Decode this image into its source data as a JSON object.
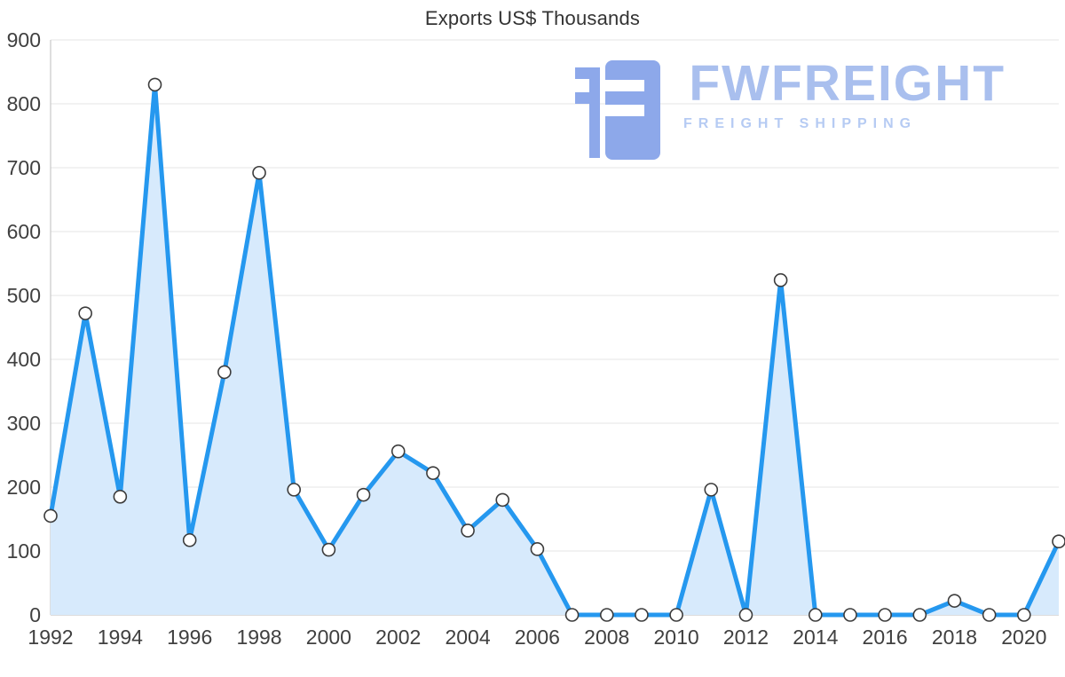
{
  "logo": {
    "name": "FWFREIGHT",
    "tagline": "FREIGHT SHIPPING"
  },
  "chart_data": {
    "type": "area",
    "title": "Exports US$ Thousands",
    "xlabel": "",
    "ylabel": "",
    "x": [
      1992,
      1993,
      1994,
      1995,
      1996,
      1997,
      1998,
      1999,
      2000,
      2001,
      2002,
      2003,
      2004,
      2005,
      2006,
      2007,
      2008,
      2009,
      2010,
      2011,
      2012,
      2013,
      2014,
      2015,
      2016,
      2017,
      2018,
      2019,
      2020,
      2021
    ],
    "values": [
      155,
      472,
      185,
      830,
      117,
      380,
      692,
      196,
      102,
      188,
      256,
      222,
      132,
      180,
      103,
      0,
      0,
      0,
      0,
      196,
      0,
      524,
      0,
      0,
      0,
      0,
      22,
      0,
      0,
      115
    ],
    "ylim": [
      0,
      900
    ],
    "y_ticks": [
      0,
      100,
      200,
      300,
      400,
      500,
      600,
      700,
      800,
      900
    ],
    "x_tick_start": 1992,
    "x_tick_step": 2,
    "x_tick_end": 2020,
    "grid": true,
    "legend": "none",
    "line_color": "#2598ef",
    "fill_color": "#d7eafc",
    "marker_fill": "#ffffff",
    "marker_stroke": "#3c3c3c",
    "grid_color": "#e6e6e6",
    "axis_color": "#bdbdbd"
  }
}
